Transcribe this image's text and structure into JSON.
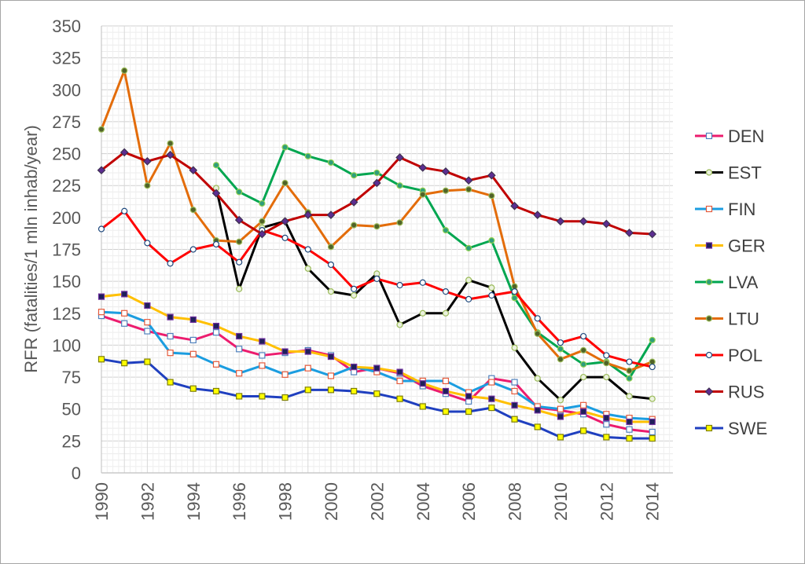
{
  "chart_data": {
    "type": "line",
    "title": "",
    "xlabel": "",
    "ylabel": "RFR (fatalities/1 mln inhab/year)",
    "x": [
      1990,
      1991,
      1992,
      1993,
      1994,
      1995,
      1996,
      1997,
      1998,
      1999,
      2000,
      2001,
      2002,
      2003,
      2004,
      2005,
      2006,
      2007,
      2008,
      2009,
      2010,
      2011,
      2012,
      2013,
      2014
    ],
    "x_tick_labels": [
      "1990",
      "1992",
      "1994",
      "1996",
      "1998",
      "2000",
      "2002",
      "2004",
      "2006",
      "2008",
      "2010",
      "2012",
      "2014"
    ],
    "y_tick_labels": [
      "0",
      "25",
      "50",
      "75",
      "100",
      "125",
      "150",
      "175",
      "200",
      "225",
      "250",
      "275",
      "300",
      "325",
      "350"
    ],
    "xlim": [
      1990,
      2014.9
    ],
    "ylim": [
      0,
      350
    ],
    "grid": true,
    "legend_position": "right",
    "series": [
      {
        "name": "DEN",
        "color": "#ec1c6e",
        "marker": "square",
        "marker_fill": "#ffffff",
        "marker_stroke": "#4f81bd",
        "values": [
          123,
          117,
          111,
          107,
          104,
          110,
          97,
          92,
          94,
          96,
          92,
          79,
          82,
          78,
          68,
          62,
          56,
          74,
          71,
          51,
          49,
          46,
          38,
          34,
          32
        ]
      },
      {
        "name": "EST",
        "color": "#000000",
        "marker": "circle",
        "marker_fill": "#eaf1dd",
        "marker_stroke": "#9bbb59",
        "values": [
          null,
          null,
          null,
          null,
          null,
          223,
          144,
          192,
          197,
          160,
          142,
          139,
          156,
          116,
          125,
          125,
          151,
          145,
          98,
          74,
          57,
          75,
          75,
          60,
          58
        ]
      },
      {
        "name": "FIN",
        "color": "#1b9de0",
        "marker": "square",
        "marker_fill": "#ffffff",
        "marker_stroke": "#e55b3c",
        "values": [
          126,
          125,
          118,
          94,
          93,
          85,
          78,
          84,
          77,
          82,
          76,
          83,
          79,
          72,
          72,
          72,
          63,
          71,
          64,
          52,
          50,
          53,
          46,
          43,
          42
        ]
      },
      {
        "name": "GER",
        "color": "#ffc000",
        "marker": "square",
        "marker_fill": "#1f1f5a",
        "marker_stroke": "#7030a0",
        "values": [
          138,
          140,
          131,
          122,
          120,
          115,
          107,
          103,
          95,
          95,
          91,
          83,
          82,
          79,
          70,
          64,
          60,
          58,
          53,
          49,
          44,
          48,
          43,
          40,
          40
        ]
      },
      {
        "name": "LVA",
        "color": "#00a650",
        "marker": "circle",
        "marker_fill": "#2e9e7a",
        "marker_stroke": "#92d050",
        "values": [
          null,
          null,
          null,
          null,
          null,
          241,
          220,
          211,
          255,
          248,
          243,
          233,
          235,
          225,
          221,
          190,
          176,
          182,
          137,
          110,
          97,
          85,
          87,
          74,
          104
        ]
      },
      {
        "name": "LTU",
        "color": "#e36c0a",
        "marker": "circle",
        "marker_fill": "#4f6228",
        "marker_stroke": "#9bbb59",
        "values": [
          269,
          315,
          225,
          258,
          206,
          182,
          181,
          197,
          227,
          204,
          177,
          194,
          193,
          196,
          218,
          221,
          222,
          217,
          146,
          109,
          89,
          96,
          86,
          80,
          87
        ]
      },
      {
        "name": "POL",
        "color": "#ff0000",
        "marker": "circle",
        "marker_fill": "#ffffff",
        "marker_stroke": "#1f497d",
        "values": [
          191,
          205,
          180,
          164,
          175,
          179,
          165,
          190,
          184,
          175,
          163,
          144,
          152,
          147,
          149,
          142,
          136,
          139,
          142,
          121,
          102,
          107,
          92,
          87,
          83
        ]
      },
      {
        "name": "RUS",
        "color": "#c00000",
        "marker": "diamond",
        "marker_fill": "#5c2d91",
        "marker_stroke": "#3f3151",
        "values": [
          237,
          251,
          244,
          249,
          237,
          219,
          198,
          187,
          197,
          202,
          202,
          212,
          227,
          247,
          239,
          236,
          229,
          233,
          209,
          202,
          197,
          197,
          195,
          188,
          187
        ]
      },
      {
        "name": "SWE",
        "color": "#1f3fbf",
        "marker": "square",
        "marker_fill": "#ffff00",
        "marker_stroke": "#7f7f00",
        "values": [
          89,
          86,
          87,
          71,
          66,
          64,
          60,
          60,
          59,
          65,
          65,
          64,
          62,
          58,
          52,
          48,
          48,
          51,
          42,
          36,
          28,
          33,
          28,
          27,
          27
        ]
      }
    ]
  }
}
